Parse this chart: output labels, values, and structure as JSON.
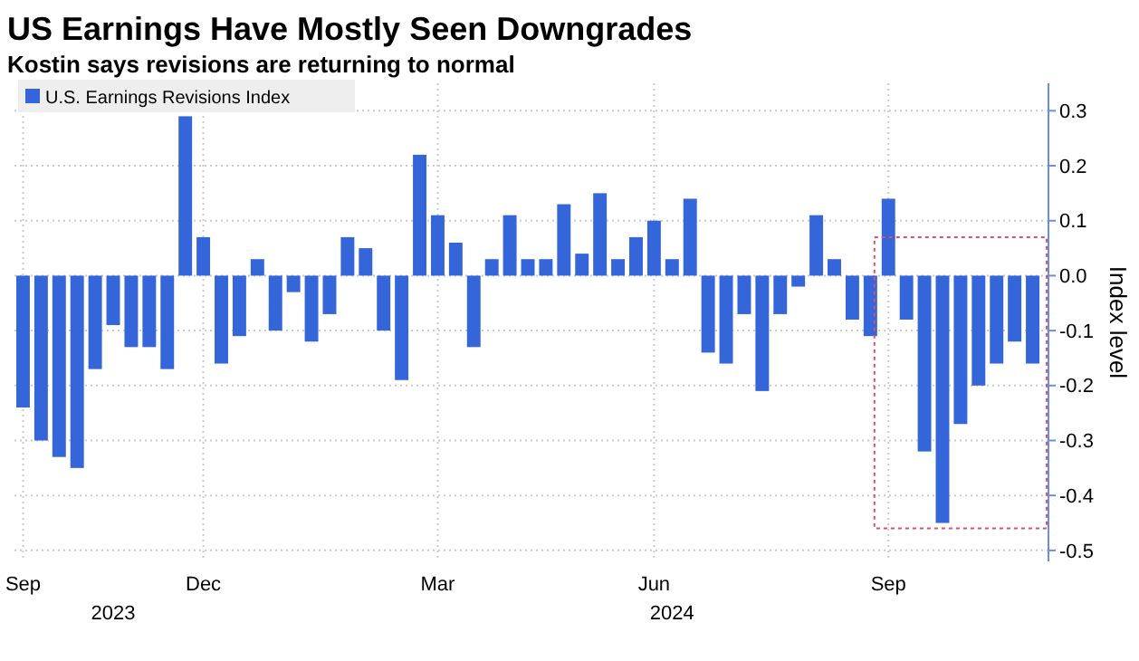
{
  "chart_data": {
    "type": "bar",
    "title": "US Earnings Have Mostly Seen Downgrades",
    "subtitle": "Kostin says revisions are returning to normal",
    "ylabel": "Index level",
    "categories": [
      "Sep",
      null,
      null,
      null,
      null,
      null,
      null,
      null,
      null,
      null,
      "Dec",
      null,
      null,
      null,
      null,
      null,
      null,
      null,
      null,
      null,
      null,
      null,
      null,
      "Mar",
      null,
      null,
      null,
      null,
      null,
      null,
      null,
      null,
      null,
      null,
      null,
      "Jun",
      null,
      null,
      null,
      null,
      null,
      null,
      null,
      null,
      null,
      null,
      null,
      null,
      "Sep",
      null,
      null,
      null,
      null,
      null,
      null,
      null,
      null
    ],
    "series": [
      {
        "name": "U.S. Earnings Revisions Index",
        "color": "#3465d9",
        "values": [
          -0.24,
          -0.3,
          -0.33,
          -0.35,
          -0.17,
          -0.09,
          -0.13,
          -0.13,
          -0.17,
          0.29,
          0.07,
          -0.16,
          -0.11,
          0.03,
          -0.1,
          -0.03,
          -0.12,
          -0.07,
          0.07,
          0.05,
          -0.1,
          -0.19,
          0.22,
          0.11,
          0.06,
          -0.13,
          0.03,
          0.11,
          0.03,
          0.03,
          0.13,
          0.04,
          0.15,
          0.03,
          0.07,
          0.1,
          0.03,
          0.14,
          -0.14,
          -0.16,
          -0.07,
          -0.21,
          -0.07,
          -0.02,
          0.11,
          0.03,
          -0.08,
          -0.11,
          0.14,
          -0.08,
          -0.32,
          -0.45,
          -0.27,
          -0.2,
          -0.16,
          -0.12,
          -0.16
        ]
      }
    ],
    "ylim": [
      -0.52,
      0.35
    ],
    "yticks": [
      {
        "value": 0.3,
        "label": "0.3"
      },
      {
        "value": 0.2,
        "label": "0.2"
      },
      {
        "value": 0.1,
        "label": "0.1"
      },
      {
        "value": 0,
        "label": "0.0"
      },
      {
        "value": -0.1,
        "label": "-0.1"
      },
      {
        "value": -0.2,
        "label": "-0.2"
      },
      {
        "value": -0.3,
        "label": "-0.3"
      },
      {
        "value": -0.4,
        "label": "-0.4"
      },
      {
        "value": -0.5,
        "label": "-0.5"
      }
    ],
    "grid": true,
    "legend": "top left",
    "annotations": [
      "2023",
      "2024"
    ]
  }
}
